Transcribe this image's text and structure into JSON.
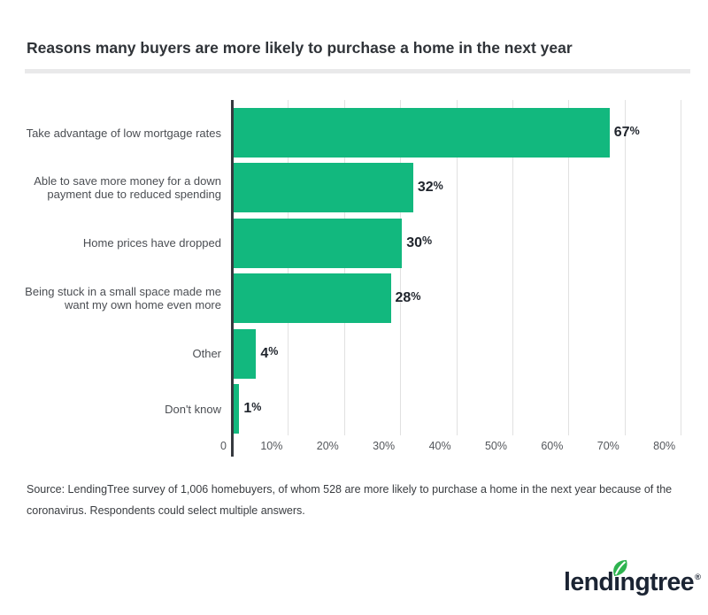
{
  "header": {
    "title": "Reasons many buyers are more likely to purchase a home in the next year"
  },
  "chart_data": {
    "type": "bar",
    "orientation": "horizontal",
    "title": "Reasons many buyers are more likely to purchase a home in the next year",
    "categories": [
      "Take advantage of low mortgage rates",
      "Able to save more money for a down payment due to reduced spending",
      "Home prices have dropped",
      "Being stuck in a small space made me want my own home even more",
      "Other",
      "Don't know"
    ],
    "category_lines": [
      [
        "Take advantage of low mortgage rates"
      ],
      [
        "Able to save more money for a down",
        "payment due to reduced spending"
      ],
      [
        "Home prices have dropped"
      ],
      [
        "Being stuck in a small space made me",
        "want my own home even more"
      ],
      [
        "Other"
      ],
      [
        "Don't know"
      ]
    ],
    "values": [
      67,
      32,
      30,
      28,
      4,
      1
    ],
    "value_labels": [
      "67%",
      "32%",
      "30%",
      "28%",
      "4%",
      "1%"
    ],
    "x_tick_values": [
      0,
      10,
      20,
      30,
      40,
      50,
      60,
      70,
      80
    ],
    "x_tick_labels": [
      "0",
      "10%",
      "20%",
      "30%",
      "40%",
      "50%",
      "60%",
      "70%",
      "80%"
    ],
    "xlim": [
      0,
      80
    ],
    "grid": true,
    "legend": false,
    "colors": {
      "bar": "#12b87e",
      "axis": "#35393f",
      "gridline": "#e1e1e1",
      "value_label": "#20252d",
      "category_label": "#4b4e53",
      "tick_label": "#54575c"
    }
  },
  "source": {
    "lines": [
      "Source: LendingTree survey of 1,006 homebuyers, of whom 528 are more likely to purchase a home in the next year because of the",
      "coronavirus. Respondents could select multiple answers."
    ]
  },
  "logo": {
    "text": "lendingtree",
    "registered_mark": "®",
    "colors": {
      "text": "#1b2433",
      "leaf": "#2eb34f"
    }
  }
}
